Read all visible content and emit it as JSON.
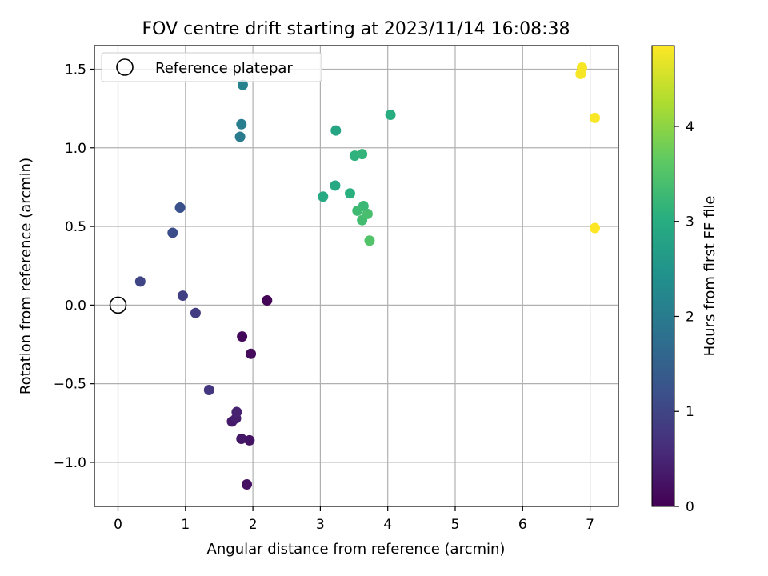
{
  "chart_data": {
    "type": "scatter",
    "title": "FOV centre drift starting at 2023/11/14 16:08:38",
    "xlabel": "Angular distance from reference (arcmin)",
    "ylabel": "Rotation from reference (arcmin)",
    "xlim": [
      -0.35,
      7.42
    ],
    "ylim": [
      -1.28,
      1.65
    ],
    "xticks": [
      0,
      1,
      2,
      3,
      4,
      5,
      6,
      7
    ],
    "xtick_labels": [
      "0",
      "1",
      "2",
      "3",
      "4",
      "5",
      "6",
      "7"
    ],
    "yticks": [
      -1.0,
      -0.5,
      0.0,
      0.5,
      1.0,
      1.5
    ],
    "ytick_labels": [
      "−1.0",
      "−0.5",
      "0.0",
      "0.5",
      "1.0",
      "1.5"
    ],
    "grid": true,
    "legend": {
      "position": "upper-left",
      "label": "Reference platepar"
    },
    "reference_point": {
      "x": 0,
      "y": 0
    },
    "colorbar": {
      "label": "Hours from first FF file",
      "range": [
        0,
        4.85
      ],
      "ticks": [
        0,
        1,
        2,
        3,
        4
      ],
      "tick_labels": [
        "0",
        "1",
        "2",
        "3",
        "4"
      ],
      "colormap": "viridis"
    },
    "points": [
      {
        "x": 2.21,
        "y": 0.03,
        "hours": 0.05
      },
      {
        "x": 1.84,
        "y": -0.2,
        "hours": 0.1
      },
      {
        "x": 1.97,
        "y": -0.31,
        "hours": 0.15
      },
      {
        "x": 1.91,
        "y": -1.14,
        "hours": 0.2
      },
      {
        "x": 1.95,
        "y": -0.86,
        "hours": 0.25
      },
      {
        "x": 1.83,
        "y": -0.85,
        "hours": 0.3
      },
      {
        "x": 1.69,
        "y": -0.74,
        "hours": 0.35
      },
      {
        "x": 1.75,
        "y": -0.72,
        "hours": 0.4
      },
      {
        "x": 1.76,
        "y": -0.68,
        "hours": 0.45
      },
      {
        "x": 1.35,
        "y": -0.54,
        "hours": 0.75
      },
      {
        "x": 1.15,
        "y": -0.05,
        "hours": 0.85
      },
      {
        "x": 0.96,
        "y": 0.06,
        "hours": 0.9
      },
      {
        "x": 0.33,
        "y": 0.15,
        "hours": 1.0
      },
      {
        "x": 0.81,
        "y": 0.46,
        "hours": 1.15
      },
      {
        "x": 0.92,
        "y": 0.62,
        "hours": 1.2
      },
      {
        "x": 1.81,
        "y": 1.07,
        "hours": 2.0
      },
      {
        "x": 1.83,
        "y": 1.15,
        "hours": 2.05
      },
      {
        "x": 1.85,
        "y": 1.4,
        "hours": 2.15
      },
      {
        "x": 3.23,
        "y": 1.11,
        "hours": 2.85
      },
      {
        "x": 4.04,
        "y": 1.21,
        "hours": 3.0
      },
      {
        "x": 3.22,
        "y": 0.76,
        "hours": 2.9
      },
      {
        "x": 3.04,
        "y": 0.69,
        "hours": 2.95
      },
      {
        "x": 3.44,
        "y": 0.71,
        "hours": 3.05
      },
      {
        "x": 3.51,
        "y": 0.95,
        "hours": 3.1
      },
      {
        "x": 3.62,
        "y": 0.96,
        "hours": 3.15
      },
      {
        "x": 3.64,
        "y": 0.63,
        "hours": 3.25
      },
      {
        "x": 3.55,
        "y": 0.6,
        "hours": 3.3
      },
      {
        "x": 3.62,
        "y": 0.54,
        "hours": 3.35
      },
      {
        "x": 3.7,
        "y": 0.58,
        "hours": 3.4
      },
      {
        "x": 3.73,
        "y": 0.41,
        "hours": 3.5
      },
      {
        "x": 6.88,
        "y": 1.51,
        "hours": 4.8
      },
      {
        "x": 6.86,
        "y": 1.47,
        "hours": 4.8
      },
      {
        "x": 7.07,
        "y": 1.19,
        "hours": 4.82
      },
      {
        "x": 7.07,
        "y": 0.49,
        "hours": 4.85
      }
    ]
  }
}
